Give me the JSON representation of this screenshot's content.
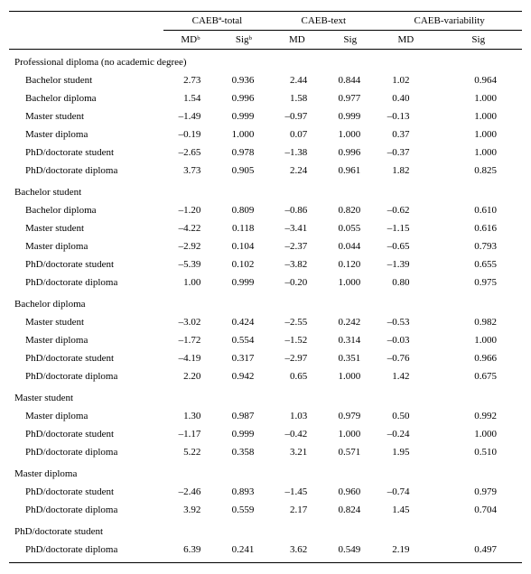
{
  "header": {
    "group1": "CAEBª-total",
    "group2": "CAEB-text",
    "group3": "CAEB-variability",
    "md": "MDᵇ",
    "sig": "Sigᵇ",
    "md_plain": "MD",
    "sig_plain": "Sig"
  },
  "sections": [
    {
      "title": "Professional diploma (no academic degree)",
      "rows": [
        {
          "label": "Bachelor student",
          "v": [
            "2.73",
            "0.936",
            "2.44",
            "0.844",
            "1.02",
            "0.964"
          ]
        },
        {
          "label": "Bachelor diploma",
          "v": [
            "1.54",
            "0.996",
            "1.58",
            "0.977",
            "0.40",
            "1.000"
          ]
        },
        {
          "label": "Master student",
          "v": [
            "–1.49",
            "0.999",
            "–0.97",
            "0.999",
            "–0.13",
            "1.000"
          ]
        },
        {
          "label": "Master diploma",
          "v": [
            "–0.19",
            "1.000",
            "0.07",
            "1.000",
            "0.37",
            "1.000"
          ]
        },
        {
          "label": "PhD/doctorate student",
          "v": [
            "–2.65",
            "0.978",
            "–1.38",
            "0.996",
            "–0.37",
            "1.000"
          ]
        },
        {
          "label": "PhD/doctorate diploma",
          "v": [
            "3.73",
            "0.905",
            "2.24",
            "0.961",
            "1.82",
            "0.825"
          ]
        }
      ]
    },
    {
      "title": "Bachelor student",
      "rows": [
        {
          "label": "Bachelor diploma",
          "v": [
            "–1.20",
            "0.809",
            "–0.86",
            "0.820",
            "–0.62",
            "0.610"
          ]
        },
        {
          "label": "Master student",
          "v": [
            "–4.22",
            "0.118",
            "–3.41",
            "0.055",
            "–1.15",
            "0.616"
          ]
        },
        {
          "label": "Master diploma",
          "v": [
            "–2.92",
            "0.104",
            "–2.37",
            "0.044",
            "–0.65",
            "0.793"
          ]
        },
        {
          "label": "PhD/doctorate student",
          "v": [
            "–5.39",
            "0.102",
            "–3.82",
            "0.120",
            "–1.39",
            "0.655"
          ]
        },
        {
          "label": "PhD/doctorate diploma",
          "v": [
            "1.00",
            "0.999",
            "–0.20",
            "1.000",
            "0.80",
            "0.975"
          ]
        }
      ]
    },
    {
      "title": "Bachelor diploma",
      "rows": [
        {
          "label": "Master student",
          "v": [
            "–3.02",
            "0.424",
            "–2.55",
            "0.242",
            "–0.53",
            "0.982"
          ]
        },
        {
          "label": "Master diploma",
          "v": [
            "–1.72",
            "0.554",
            "–1.52",
            "0.314",
            "–0.03",
            "1.000"
          ]
        },
        {
          "label": "PhD/doctorate student",
          "v": [
            "–4.19",
            "0.317",
            "–2.97",
            "0.351",
            "–0.76",
            "0.966"
          ]
        },
        {
          "label": "PhD/doctorate diploma",
          "v": [
            "2.20",
            "0.942",
            "0.65",
            "1.000",
            "1.42",
            "0.675"
          ]
        }
      ]
    },
    {
      "title": "Master student",
      "rows": [
        {
          "label": "Master diploma",
          "v": [
            "1.30",
            "0.987",
            "1.03",
            "0.979",
            "0.50",
            "0.992"
          ]
        },
        {
          "label": "PhD/doctorate student",
          "v": [
            "–1.17",
            "0.999",
            "–0.42",
            "1.000",
            "–0.24",
            "1.000"
          ]
        },
        {
          "label": "PhD/doctorate diploma",
          "v": [
            "5.22",
            "0.358",
            "3.21",
            "0.571",
            "1.95",
            "0.510"
          ]
        }
      ]
    },
    {
      "title": "Master diploma",
      "rows": [
        {
          "label": "PhD/doctorate student",
          "v": [
            "–2.46",
            "0.893",
            "–1.45",
            "0.960",
            "–0.74",
            "0.979"
          ]
        },
        {
          "label": "PhD/doctorate diploma",
          "v": [
            "3.92",
            "0.559",
            "2.17",
            "0.824",
            "1.45",
            "0.704"
          ]
        }
      ]
    },
    {
      "title": "PhD/doctorate student",
      "rows": [
        {
          "label": "PhD/doctorate diploma",
          "v": [
            "6.39",
            "0.241",
            "3.62",
            "0.549",
            "2.19",
            "0.497"
          ]
        }
      ]
    }
  ]
}
